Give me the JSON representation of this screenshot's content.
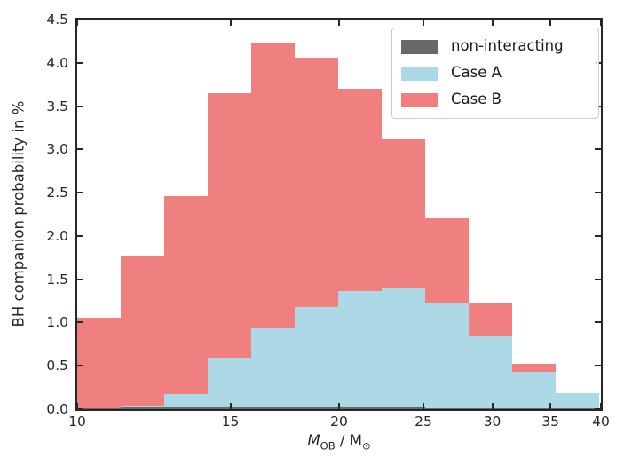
{
  "figure": {
    "ylabel": "BH companion probability in %",
    "xlabel_parts": {
      "variable": "M",
      "variable_sub": "OB",
      "separator": " / ",
      "unit": "M",
      "unit_sub": "⊙"
    }
  },
  "chart_data": {
    "type": "bar",
    "subtype": "stacked-step-histogram",
    "title": "",
    "xlabel": "M_OB / M_sun",
    "ylabel": "BH companion probability in %",
    "x_scale": "log",
    "xlim": [
      10,
      40
    ],
    "ylim": [
      0,
      4.5
    ],
    "xticks": [
      10,
      15,
      20,
      25,
      30,
      35,
      40
    ],
    "yticks": [
      0.0,
      0.5,
      1.0,
      1.5,
      2.0,
      2.5,
      3.0,
      3.5,
      4.0,
      4.5
    ],
    "grid": false,
    "legend_position": "upper right",
    "bin_edges": [
      10.0,
      11.22,
      12.59,
      14.13,
      15.85,
      17.78,
      19.95,
      22.39,
      25.12,
      28.18,
      31.62,
      35.48,
      39.81
    ],
    "values_represent": "top of filled region in %, as drawn (outer envelope per series)",
    "series": [
      {
        "name": "non-interacting",
        "color": "#696969",
        "values": [
          0.01,
          0.02,
          0.02,
          0.02,
          0.02,
          0.02,
          0.02,
          0.02,
          0.01,
          0.01,
          0.01,
          0.01
        ]
      },
      {
        "name": "Case A",
        "color": "#ADD8E6",
        "values": [
          0.0,
          0.03,
          0.17,
          0.59,
          0.93,
          1.18,
          1.36,
          1.4,
          1.22,
          0.84,
          0.43,
          0.18
        ]
      },
      {
        "name": "Case B",
        "color": "#F08080",
        "values": [
          1.06,
          1.76,
          2.46,
          3.65,
          4.22,
          4.06,
          3.7,
          3.12,
          2.2,
          1.23,
          0.52,
          0.0
        ]
      }
    ]
  }
}
